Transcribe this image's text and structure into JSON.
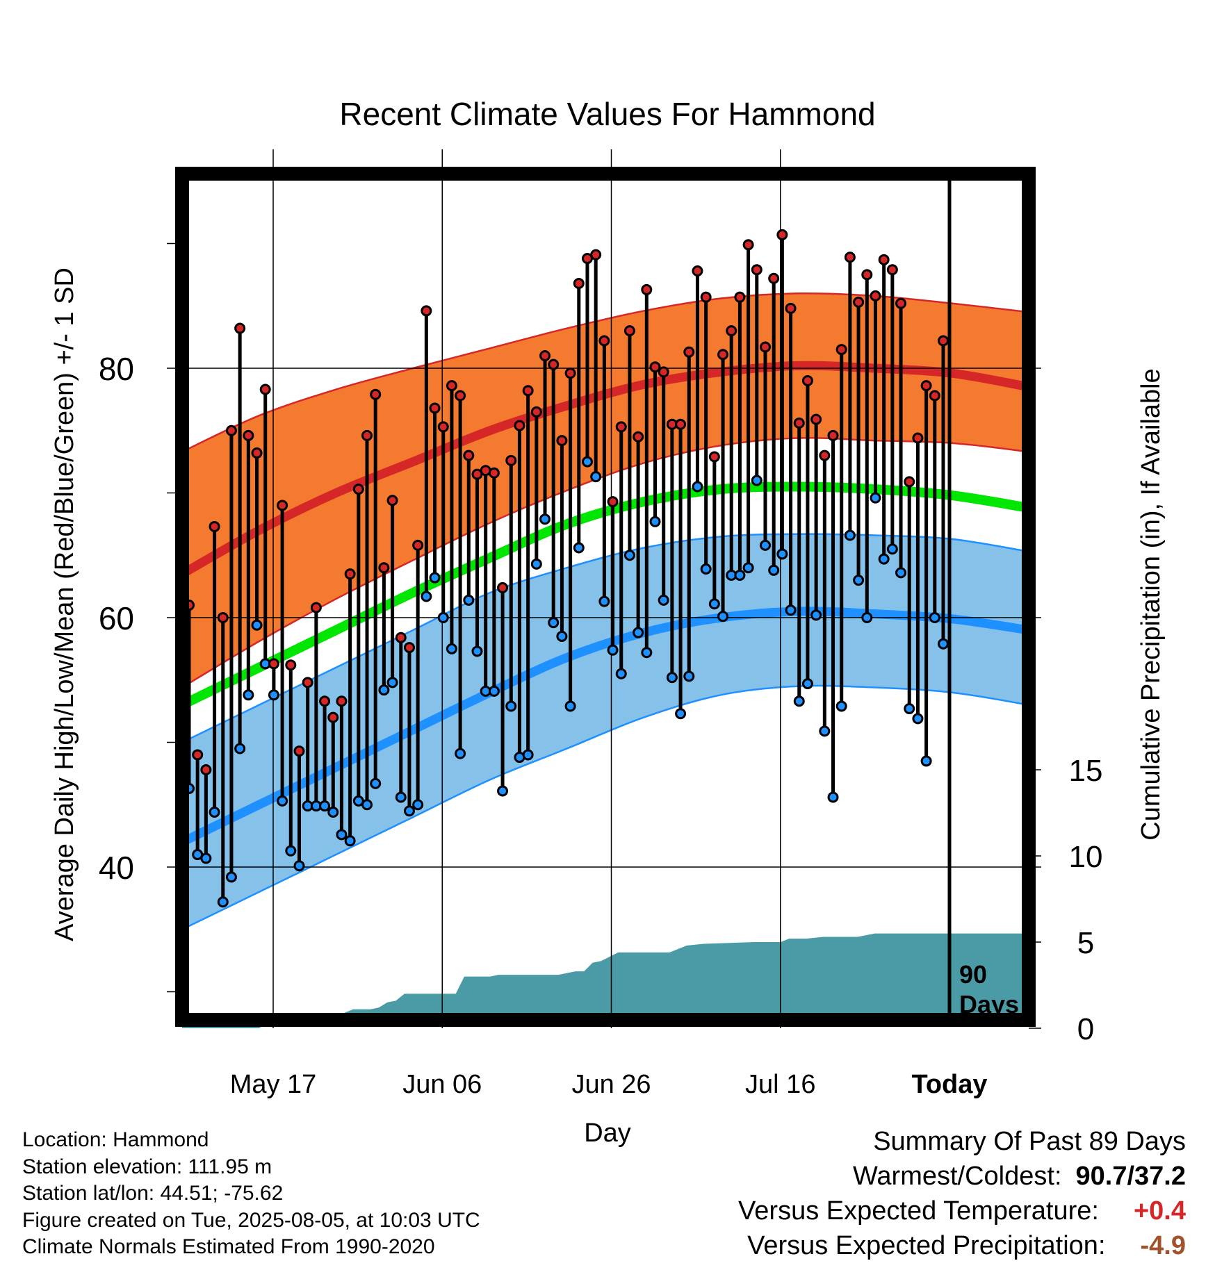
{
  "chart_data": {
    "type": "line",
    "title": "Recent Climate Values For Hammond",
    "xlabel": "Day",
    "ylabel": "Average Daily High/Low/Mean (Red/Blue/Green) +/- 1 SD",
    "y2label": "Cumulative Precipitation (in), If Available",
    "ylim": [
      28,
      95
    ],
    "y2lim": [
      0,
      19.6
    ],
    "x_start": "2025-05-07",
    "x_end": "2025-08-14",
    "x_ticks": [
      {
        "date": "2025-05-17",
        "label": "May 17"
      },
      {
        "date": "2025-06-06",
        "label": "Jun 06"
      },
      {
        "date": "2025-06-26",
        "label": "Jun 26"
      },
      {
        "date": "2025-07-16",
        "label": "Jul 16"
      },
      {
        "date": "2025-08-05",
        "label": "Today"
      }
    ],
    "y_ticks": [
      40,
      60,
      80
    ],
    "y_minor_ticks": [
      30,
      50,
      70,
      90
    ],
    "y2_ticks": [
      0,
      5,
      10,
      15
    ],
    "today_marker": {
      "date": "2025-08-05",
      "label_line1": "90",
      "label_line2": "Days"
    },
    "normals": {
      "high_mean_endpoints": [
        [
          0,
          63.5
        ],
        [
          100,
          78.5
        ]
      ],
      "high_mean_peak": [
        [
          70,
          80.0
        ]
      ],
      "colors": {
        "high": "#d62728",
        "high_band": "#f47a30",
        "low": "#1e90ff",
        "low_band": "#85c1e9",
        "mean": "#00e600",
        "precip": "#4a9ba5"
      },
      "high": [
        63.5,
        67.0,
        70.0,
        72.5,
        75.0,
        77.0,
        78.7,
        79.7,
        80.2,
        80.0,
        79.6,
        78.5
      ],
      "high_upper": [
        73.3,
        76.2,
        78.3,
        80.0,
        81.6,
        83.2,
        84.6,
        85.6,
        86.0,
        85.8,
        85.2,
        84.5
      ],
      "high_lower": [
        54.4,
        58.1,
        61.5,
        64.6,
        67.6,
        70.2,
        72.4,
        73.8,
        74.4,
        74.2,
        74.0,
        73.3
      ],
      "mean": [
        53.0,
        56.0,
        59.0,
        62.0,
        64.8,
        67.5,
        69.3,
        70.3,
        70.5,
        70.3,
        69.8,
        68.8
      ],
      "low": [
        42.0,
        45.0,
        48.0,
        51.0,
        54.0,
        56.8,
        58.8,
        60.0,
        60.5,
        60.3,
        59.9,
        59.0
      ],
      "low_upper": [
        50.0,
        53.0,
        56.0,
        59.0,
        62.0,
        64.0,
        65.6,
        66.5,
        66.7,
        66.6,
        66.3,
        65.3
      ],
      "low_lower": [
        35.0,
        38.0,
        41.0,
        44.0,
        47.0,
        49.5,
        52.0,
        53.8,
        54.5,
        54.4,
        54.0,
        53.0
      ],
      "band_days": [
        0,
        9,
        18,
        27,
        36,
        45,
        54,
        63,
        72,
        81,
        90,
        99
      ]
    },
    "daily_highs": [
      61.0,
      49.0,
      47.8,
      67.3,
      60.0,
      75.0,
      83.2,
      74.6,
      73.2,
      78.3,
      56.3,
      69.0,
      56.2,
      49.3,
      54.8,
      60.8,
      53.3,
      52.0,
      53.3,
      63.5,
      70.3,
      74.6,
      77.9,
      64.0,
      69.4,
      58.4,
      57.6,
      65.8,
      84.6,
      76.8,
      75.3,
      78.6,
      77.8,
      73.0,
      71.5,
      71.8,
      71.6,
      62.4,
      72.6,
      75.4,
      78.2,
      76.5,
      81.0,
      80.3,
      74.2,
      79.6,
      86.8,
      88.8,
      89.1,
      82.2,
      69.3,
      75.3,
      83.0,
      74.5,
      86.3,
      80.1,
      79.7,
      75.5,
      75.5,
      81.3,
      87.8,
      85.7,
      72.9,
      81.1,
      83.0,
      85.7,
      89.9,
      87.9,
      81.7,
      87.2,
      90.7,
      84.8,
      75.6,
      79.0,
      75.9,
      73.0,
      74.6,
      81.5,
      88.9,
      85.3,
      87.5,
      85.8,
      88.7,
      87.9,
      85.2,
      70.9,
      74.4,
      78.6,
      77.8,
      82.2
    ],
    "daily_lows": [
      46.3,
      41.0,
      40.7,
      44.4,
      37.2,
      39.2,
      49.5,
      53.8,
      59.4,
      56.3,
      53.8,
      45.3,
      41.3,
      40.1,
      44.9,
      44.9,
      44.9,
      44.4,
      42.6,
      42.1,
      45.3,
      45.0,
      46.7,
      54.2,
      54.8,
      45.6,
      44.5,
      45.0,
      61.7,
      63.2,
      60.0,
      57.5,
      49.1,
      61.4,
      57.3,
      54.1,
      54.1,
      46.1,
      52.9,
      48.8,
      49.0,
      64.3,
      67.9,
      59.6,
      58.5,
      52.9,
      65.6,
      72.5,
      71.3,
      61.3,
      57.4,
      55.5,
      65.0,
      58.8,
      57.2,
      67.7,
      61.4,
      55.2,
      52.3,
      55.3,
      70.5,
      63.9,
      61.1,
      60.1,
      63.4,
      63.4,
      64.0,
      71.0,
      65.8,
      63.8,
      65.1,
      60.6,
      53.3,
      54.7,
      60.2,
      50.9,
      45.6,
      52.9,
      66.6,
      63.0,
      60.0,
      69.6,
      64.7,
      65.5,
      63.6,
      52.7,
      51.9,
      48.5,
      60.0,
      57.9
    ],
    "cumulative_precip": [
      [
        0,
        0.0
      ],
      [
        9,
        0.0
      ],
      [
        10,
        0.3
      ],
      [
        13,
        0.3
      ],
      [
        16,
        0.5
      ],
      [
        18,
        0.7
      ],
      [
        20,
        1.1
      ],
      [
        22,
        1.1
      ],
      [
        23,
        1.2
      ],
      [
        24,
        1.5
      ],
      [
        25,
        1.6
      ],
      [
        26,
        2.0
      ],
      [
        27,
        2.0
      ],
      [
        32,
        2.0
      ],
      [
        33,
        3.0
      ],
      [
        36,
        3.0
      ],
      [
        37,
        3.1
      ],
      [
        44,
        3.1
      ],
      [
        46,
        3.3
      ],
      [
        47,
        3.3
      ],
      [
        48,
        3.8
      ],
      [
        49,
        3.9
      ],
      [
        51,
        4.4
      ],
      [
        54,
        4.4
      ],
      [
        57,
        4.4
      ],
      [
        59,
        4.8
      ],
      [
        61,
        4.9
      ],
      [
        67,
        5.0
      ],
      [
        70,
        5.0
      ],
      [
        71,
        5.2
      ],
      [
        73,
        5.2
      ],
      [
        75,
        5.3
      ],
      [
        79,
        5.3
      ],
      [
        81,
        5.5
      ],
      [
        82,
        5.5
      ],
      [
        91,
        5.5
      ],
      [
        99,
        5.5
      ]
    ],
    "grid": true
  },
  "location_info": {
    "line1": "Location: Hammond",
    "line2": "Station elevation: 111.95 m",
    "line3": "Station lat/lon: 44.51; -75.62",
    "line4": "Figure created on Tue, 2025-08-05, at 10:03 UTC",
    "line5": "Climate Normals Estimated From 1990-2020"
  },
  "summary": {
    "title": "Summary Of Past 89 Days",
    "warmest_label": "Warmest/Coldest:",
    "warmest_value": "90.7/37.2",
    "temp_label": "Versus Expected Temperature:",
    "temp_value": "+0.4",
    "temp_color": "#d62728",
    "precip_label": "Versus Expected Precipitation:",
    "precip_value": "-4.9",
    "precip_color": "#a0522d"
  }
}
